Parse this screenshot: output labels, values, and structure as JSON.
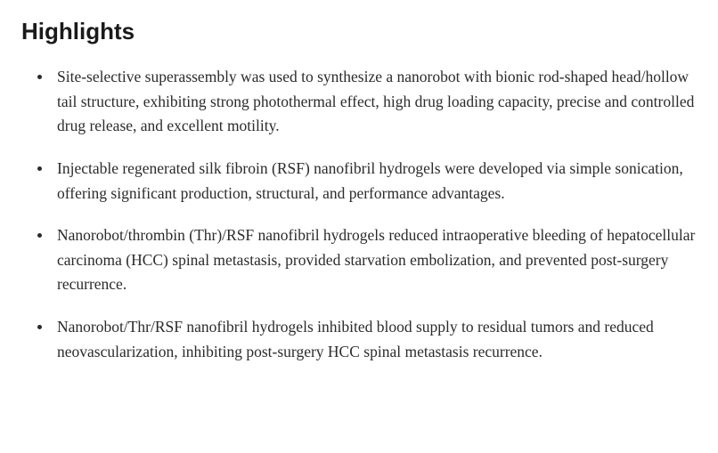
{
  "heading": "Highlights",
  "bullets": [
    "Site-selective superassembly was used to synthesize a nanorobot with bionic rod-shaped head/hollow tail structure, exhibiting strong photothermal effect, high drug loading capacity, precise and controlled drug release, and excellent motility.",
    "Injectable regenerated silk fibroin (RSF) nanofibril hydrogels were developed via simple sonication, offering significant production, structural, and performance advantages.",
    "Nanorobot/thrombin (Thr)/RSF nanofibril hydrogels reduced intraoperative bleeding of hepatocellular carcinoma (HCC) spinal metastasis, provided starvation embolization, and prevented post-surgery recurrence.",
    "Nanorobot/Thr/RSF nanofibril hydrogels inhibited blood supply to residual tumors and reduced neovascularization, inhibiting post-surgery HCC spinal metastasis recurrence."
  ],
  "style": {
    "heading_fontsize": 26,
    "heading_color": "#1a1a1a",
    "body_fontsize": 17.5,
    "body_color": "#2b2b2b",
    "line_height": 1.58,
    "bullet_color": "#2b2b2b",
    "background_color": "#ffffff"
  }
}
